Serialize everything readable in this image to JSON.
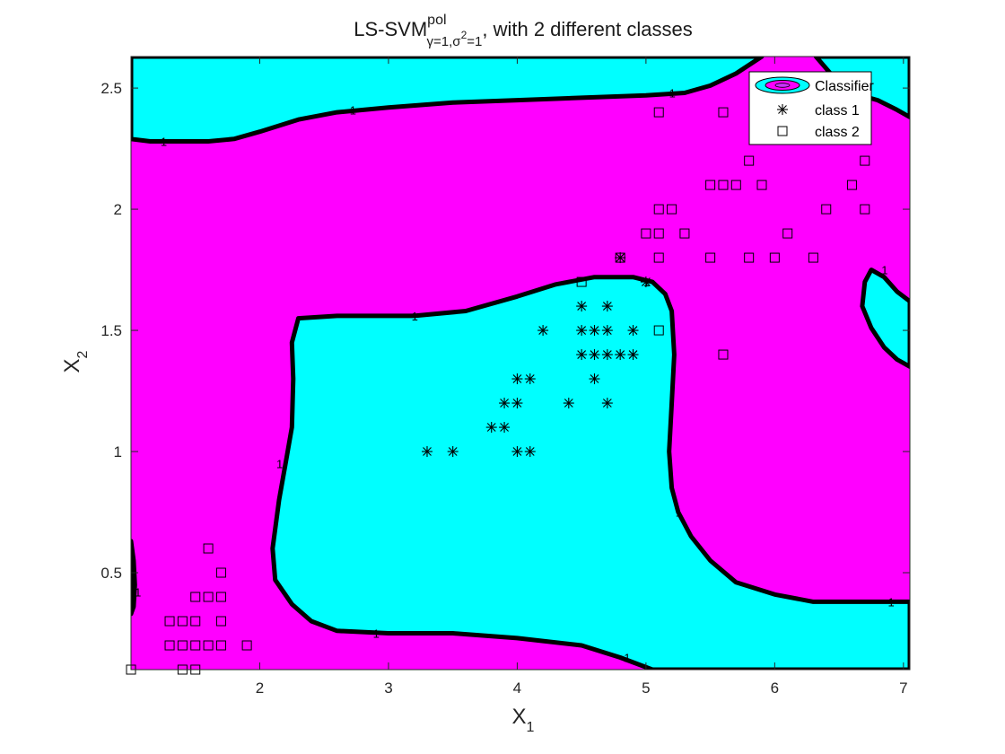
{
  "chart_data": {
    "type": "scatter",
    "title": {
      "main": "LS-SVM",
      "superscript": "pol",
      "subscript_prefix": "γ=1,σ",
      "subscript_sup": "2",
      "subscript_suffix": "=1",
      "rest": ", with 2 different classes"
    },
    "xlabel": {
      "base": "X",
      "sub": "1"
    },
    "ylabel": {
      "base": "X",
      "sub": "2"
    },
    "xlim": [
      1.0,
      7.05
    ],
    "ylim": [
      0.1,
      2.63
    ],
    "xticks": [
      2,
      3,
      4,
      5,
      6,
      7
    ],
    "xtick_labels": [
      "2",
      "3",
      "4",
      "5",
      "6",
      "7"
    ],
    "yticks": [
      0.5,
      1,
      1.5,
      2,
      2.5
    ],
    "ytick_labels": [
      "0.5",
      "1",
      "1.5",
      "2",
      "2.5"
    ],
    "grid": false,
    "legend_position": "top-right",
    "legend": [
      {
        "label": "Classifier",
        "marker": "contour"
      },
      {
        "label": "class 1",
        "marker": "asterisk"
      },
      {
        "label": "class 2",
        "marker": "square"
      }
    ],
    "colors": {
      "class1_region": "#ff00ff",
      "class2_region": "#00ffff",
      "boundary": "#000000"
    },
    "decision_boundary_label": "1",
    "series": [
      {
        "name": "class 1",
        "marker": "asterisk",
        "points": [
          [
            3.3,
            1.0
          ],
          [
            3.5,
            1.0
          ],
          [
            4.0,
            1.0
          ],
          [
            4.1,
            1.0
          ],
          [
            3.8,
            1.1
          ],
          [
            3.9,
            1.1
          ],
          [
            3.9,
            1.2
          ],
          [
            4.0,
            1.2
          ],
          [
            4.4,
            1.2
          ],
          [
            4.7,
            1.2
          ],
          [
            4.0,
            1.3
          ],
          [
            4.1,
            1.3
          ],
          [
            4.6,
            1.3
          ],
          [
            4.5,
            1.4
          ],
          [
            4.6,
            1.4
          ],
          [
            4.7,
            1.4
          ],
          [
            4.8,
            1.4
          ],
          [
            4.9,
            1.4
          ],
          [
            4.2,
            1.5
          ],
          [
            4.5,
            1.5
          ],
          [
            4.6,
            1.5
          ],
          [
            4.7,
            1.5
          ],
          [
            4.9,
            1.5
          ],
          [
            4.5,
            1.6
          ],
          [
            4.7,
            1.6
          ],
          [
            5.0,
            1.7
          ],
          [
            4.8,
            1.8
          ]
        ]
      },
      {
        "name": "class 2",
        "marker": "square",
        "points": [
          [
            1.0,
            0.1
          ],
          [
            1.4,
            0.1
          ],
          [
            1.5,
            0.1
          ],
          [
            1.3,
            0.2
          ],
          [
            1.4,
            0.2
          ],
          [
            1.5,
            0.2
          ],
          [
            1.6,
            0.2
          ],
          [
            1.7,
            0.2
          ],
          [
            1.9,
            0.2
          ],
          [
            1.3,
            0.3
          ],
          [
            1.4,
            0.3
          ],
          [
            1.5,
            0.3
          ],
          [
            1.7,
            0.3
          ],
          [
            1.5,
            0.4
          ],
          [
            1.6,
            0.4
          ],
          [
            1.7,
            0.4
          ],
          [
            1.7,
            0.5
          ],
          [
            1.6,
            0.6
          ],
          [
            5.6,
            1.4
          ],
          [
            5.1,
            1.5
          ],
          [
            4.5,
            1.7
          ],
          [
            4.8,
            1.8
          ],
          [
            5.1,
            1.8
          ],
          [
            5.5,
            1.8
          ],
          [
            5.8,
            1.8
          ],
          [
            6.0,
            1.8
          ],
          [
            6.3,
            1.8
          ],
          [
            5.0,
            1.9
          ],
          [
            5.1,
            1.9
          ],
          [
            5.3,
            1.9
          ],
          [
            6.1,
            1.9
          ],
          [
            5.1,
            2.0
          ],
          [
            5.2,
            2.0
          ],
          [
            6.4,
            2.0
          ],
          [
            6.7,
            2.0
          ],
          [
            5.5,
            2.1
          ],
          [
            5.6,
            2.1
          ],
          [
            5.7,
            2.1
          ],
          [
            5.9,
            2.1
          ],
          [
            6.6,
            2.1
          ],
          [
            5.8,
            2.2
          ],
          [
            6.7,
            2.2
          ],
          [
            5.1,
            2.4
          ],
          [
            5.6,
            2.4
          ]
        ]
      }
    ],
    "regions": [
      {
        "name": "top-left-region",
        "class": "class2_region",
        "points": [
          [
            1.0,
            2.63
          ],
          [
            1.0,
            2.29
          ],
          [
            1.15,
            2.28
          ],
          [
            1.6,
            2.28
          ],
          [
            1.8,
            2.29
          ],
          [
            2.0,
            2.32
          ],
          [
            2.3,
            2.37
          ],
          [
            2.6,
            2.4
          ],
          [
            3.0,
            2.42
          ],
          [
            3.5,
            2.44
          ],
          [
            4.0,
            2.45
          ],
          [
            4.5,
            2.46
          ],
          [
            5.0,
            2.47
          ],
          [
            5.3,
            2.48
          ],
          [
            5.5,
            2.51
          ],
          [
            5.7,
            2.56
          ],
          [
            5.9,
            2.63
          ]
        ]
      },
      {
        "name": "center-region",
        "class": "class2_region",
        "points": [
          [
            2.3,
            1.55
          ],
          [
            2.6,
            1.56
          ],
          [
            3.0,
            1.56
          ],
          [
            3.2,
            1.56
          ],
          [
            3.6,
            1.58
          ],
          [
            4.0,
            1.64
          ],
          [
            4.3,
            1.69
          ],
          [
            4.6,
            1.72
          ],
          [
            4.9,
            1.72
          ],
          [
            5.05,
            1.7
          ],
          [
            5.15,
            1.65
          ],
          [
            5.2,
            1.58
          ],
          [
            5.22,
            1.4
          ],
          [
            5.2,
            1.2
          ],
          [
            5.18,
            1.0
          ],
          [
            5.2,
            0.85
          ],
          [
            5.25,
            0.75
          ],
          [
            5.35,
            0.65
          ],
          [
            5.5,
            0.55
          ],
          [
            5.7,
            0.46
          ],
          [
            6.0,
            0.41
          ],
          [
            6.3,
            0.38
          ],
          [
            7.05,
            0.38
          ],
          [
            7.05,
            0.1
          ],
          [
            5.05,
            0.1
          ],
          [
            4.8,
            0.15
          ],
          [
            4.5,
            0.2
          ],
          [
            4.0,
            0.23
          ],
          [
            3.5,
            0.25
          ],
          [
            3.0,
            0.25
          ],
          [
            2.6,
            0.26
          ],
          [
            2.4,
            0.3
          ],
          [
            2.25,
            0.37
          ],
          [
            2.12,
            0.47
          ],
          [
            2.1,
            0.6
          ],
          [
            2.15,
            0.8
          ],
          [
            2.2,
            0.95
          ],
          [
            2.25,
            1.1
          ],
          [
            2.26,
            1.3
          ],
          [
            2.25,
            1.45
          ]
        ]
      },
      {
        "name": "right-region",
        "class": "class2_region",
        "points": [
          [
            6.75,
            1.75
          ],
          [
            6.85,
            1.72
          ],
          [
            6.95,
            1.66
          ],
          [
            7.05,
            1.62
          ],
          [
            7.05,
            1.35
          ],
          [
            6.95,
            1.38
          ],
          [
            6.85,
            1.43
          ],
          [
            6.75,
            1.51
          ],
          [
            6.68,
            1.6
          ],
          [
            6.7,
            1.7
          ]
        ]
      },
      {
        "name": "left-edge-region",
        "class": "class2_region",
        "points": [
          [
            1.0,
            0.63
          ],
          [
            1.02,
            0.55
          ],
          [
            1.03,
            0.45
          ],
          [
            1.02,
            0.36
          ],
          [
            1.0,
            0.33
          ]
        ]
      },
      {
        "name": "top-right-region",
        "class": "class2_region",
        "points": [
          [
            6.32,
            2.63
          ],
          [
            6.45,
            2.55
          ],
          [
            6.6,
            2.48
          ],
          [
            6.8,
            2.45
          ],
          [
            6.95,
            2.41
          ],
          [
            7.05,
            2.38
          ],
          [
            7.05,
            2.63
          ]
        ]
      }
    ]
  }
}
